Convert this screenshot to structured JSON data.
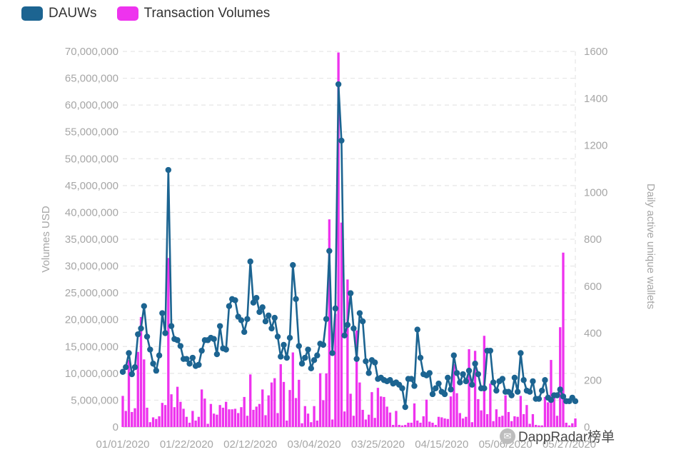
{
  "legend": {
    "dauws_label": "DAUWs",
    "tx_label": "Transaction Volumes"
  },
  "colors": {
    "dauws": "#1c6491",
    "tx": "#ee33ee",
    "grid": "#e6e6e6",
    "axis_text": "#a6a6a6"
  },
  "watermark": {
    "text": "DappRadar榜单",
    "icon": "wechat-icon"
  },
  "chart_data": {
    "type": "bar+line",
    "xlabel": "",
    "y_left_label": "Volumes USD",
    "y_right_label": "Daily active unique wallets",
    "ylim_left": [
      0,
      70000000
    ],
    "ylim_right": [
      0,
      1600
    ],
    "y_left_ticks": [
      "0",
      "5,000,000",
      "10,000,000",
      "15,000,000",
      "20,000,000",
      "25,000,000",
      "30,000,000",
      "35,000,000",
      "40,000,000",
      "45,000,000",
      "50,000,000",
      "55,000,000",
      "60,000,000",
      "65,000,000",
      "70,000,000"
    ],
    "y_right_ticks": [
      "0",
      "200",
      "400",
      "600",
      "800",
      "1000",
      "1200",
      "1400",
      "1600"
    ],
    "x_tick_labels": [
      "01/01/2020",
      "01/22/2020",
      "02/12/2020",
      "03/04/2020",
      "03/25/2020",
      "04/15/2020",
      "05/06/2020",
      "05/27/2020"
    ],
    "x_tick_days": [
      0,
      21,
      42,
      63,
      84,
      105,
      126,
      147
    ],
    "num_days": 150,
    "series": [
      {
        "name": "Transaction Volumes",
        "axis": "left",
        "type": "bar",
        "values": [
          5800000,
          3000000,
          12500000,
          2800000,
          3500000,
          14000000,
          20500000,
          12600000,
          3600000,
          900000,
          1800000,
          1500000,
          2000000,
          4500000,
          4100000,
          31500000,
          6100000,
          3700000,
          7500000,
          4700000,
          3400000,
          1900000,
          800000,
          3000000,
          1200000,
          1900000,
          7000000,
          5300000,
          600000,
          4300000,
          2500000,
          2300000,
          4100000,
          3600000,
          4700000,
          3300000,
          3300000,
          3400000,
          2600000,
          3700000,
          5600000,
          2100000,
          9800000,
          3200000,
          3800000,
          4300000,
          7000000,
          2200000,
          5900000,
          8300000,
          9100000,
          2600000,
          11700000,
          8400000,
          1200000,
          6900000,
          13900000,
          5400000,
          8800000,
          700000,
          3900000,
          2500000,
          900000,
          3900000,
          1200000,
          10000000,
          5000000,
          10000000,
          38700000,
          1400000,
          21100000,
          69800000,
          38100000,
          2900000,
          27500000,
          6200000,
          2100000,
          18000000,
          8300000,
          3200000,
          1400000,
          2300000,
          6500000,
          1700000,
          7300000,
          5700000,
          5600000,
          3800000,
          2700000,
          400000,
          3000000,
          400000,
          300000,
          400000,
          800000,
          800000,
          4400000,
          1200000,
          800000,
          2000000,
          5100000,
          1000000,
          800000,
          400000,
          1900000,
          1800000,
          1600000,
          1500000,
          5700000,
          11700000,
          6300000,
          2600000,
          1600000,
          1900000,
          14500000,
          900000,
          14200000,
          5200000,
          3100000,
          17000000,
          2400000,
          8100000,
          1100000,
          3300000,
          1900000,
          2100000,
          5900000,
          2800000,
          1100000,
          2000000,
          1900000,
          5800000,
          2400000,
          4100000,
          600000,
          2400000,
          400000,
          300000,
          300000,
          5600000,
          4600000,
          12500000,
          6300000,
          2100000,
          18600000,
          32500000,
          800000,
          300000,
          700000,
          1600000
        ]
      },
      {
        "name": "DAUWs",
        "axis": "right",
        "type": "line",
        "values": [
          235,
          255,
          315,
          225,
          255,
          395,
          420,
          515,
          385,
          330,
          270,
          240,
          305,
          485,
          400,
          1095,
          430,
          375,
          370,
          345,
          290,
          290,
          270,
          295,
          260,
          265,
          325,
          370,
          370,
          380,
          375,
          310,
          430,
          335,
          330,
          515,
          545,
          540,
          470,
          455,
          405,
          460,
          705,
          530,
          550,
          490,
          510,
          450,
          475,
          420,
          465,
          385,
          300,
          350,
          295,
          380,
          690,
          545,
          345,
          270,
          295,
          330,
          250,
          285,
          305,
          355,
          350,
          460,
          750,
          315,
          505,
          1460,
          1220,
          390,
          435,
          570,
          420,
          290,
          485,
          450,
          280,
          230,
          285,
          275,
          205,
          210,
          200,
          195,
          200,
          185,
          190,
          180,
          165,
          85,
          205,
          205,
          175,
          415,
          295,
          225,
          220,
          230,
          140,
          165,
          185,
          150,
          140,
          210,
          160,
          305,
          230,
          190,
          225,
          195,
          240,
          180,
          270,
          225,
          165,
          165,
          325,
          325,
          190,
          155,
          195,
          205,
          150,
          150,
          135,
          210,
          150,
          315,
          200,
          155,
          150,
          195,
          120,
          120,
          155,
          200,
          125,
          115,
          135,
          135,
          160,
          130,
          110,
          110,
          125,
          110
        ]
      }
    ]
  }
}
